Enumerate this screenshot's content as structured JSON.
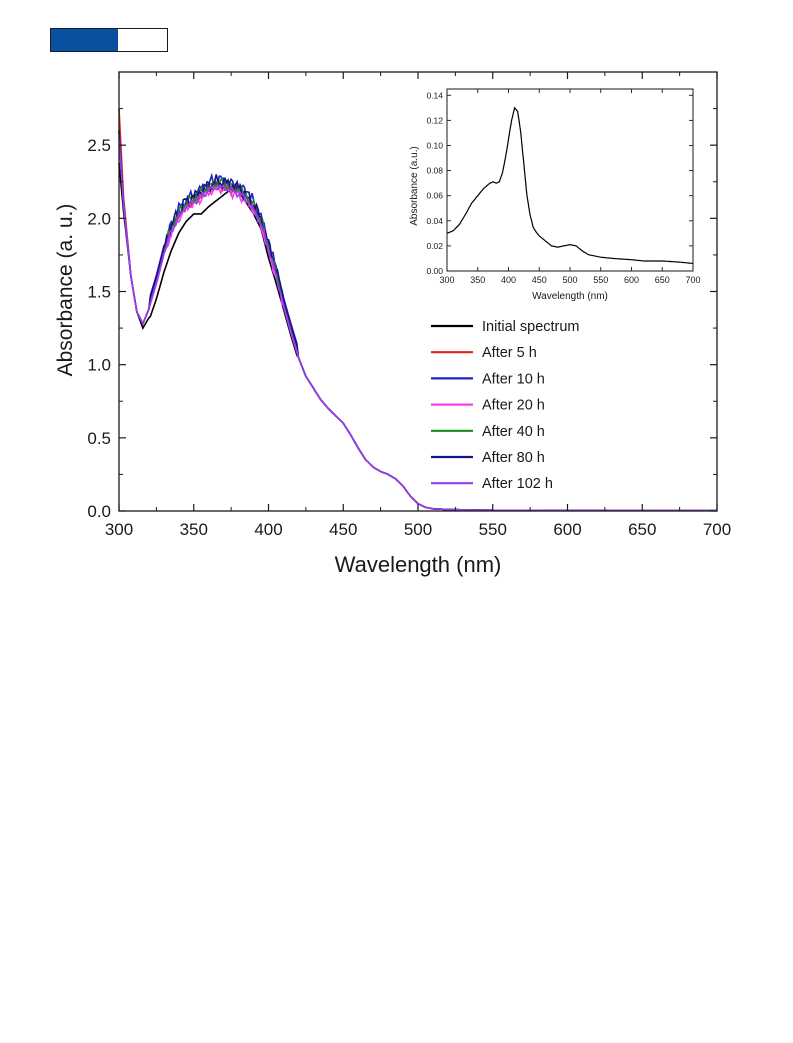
{
  "header": {
    "fill_fraction": 0.58,
    "fill_color": "#0a50a1"
  },
  "chart_data": [
    {
      "type": "line",
      "xlabel": "Wavelength (nm)",
      "ylabel": "Absorbance (a. u.)",
      "xlim": [
        300,
        700
      ],
      "ylim": [
        0,
        3.0
      ],
      "xticks": [
        "300",
        "350",
        "400",
        "450",
        "500",
        "550",
        "600",
        "650",
        "700"
      ],
      "yticks": [
        "0.0",
        "0.5",
        "1.0",
        "1.5",
        "2.0",
        "2.5"
      ],
      "legend_placement": "right",
      "series": [
        {
          "name": "Initial spectrum",
          "color": "#000000",
          "noise": 0.0,
          "dx": 0.0,
          "dy": -0.02,
          "x": [
            300,
            303,
            308,
            312,
            316,
            320,
            325,
            330,
            335,
            340,
            345,
            350,
            355,
            360,
            365,
            370,
            375,
            380,
            385,
            390,
            395,
            400,
            405,
            410,
            415,
            420,
            425,
            430,
            435,
            440,
            445,
            450,
            455,
            460,
            465,
            470,
            475,
            480,
            485,
            490,
            495,
            500,
            505,
            510,
            520,
            530,
            550,
            600,
            650,
            700
          ],
          "y": [
            2.38,
            2.05,
            1.6,
            1.36,
            1.25,
            1.32,
            1.47,
            1.65,
            1.8,
            1.92,
            2.0,
            2.05,
            2.05,
            2.1,
            2.14,
            2.18,
            2.22,
            2.2,
            2.13,
            2.05,
            1.95,
            1.75,
            1.58,
            1.4,
            1.22,
            1.05,
            0.92,
            0.84,
            0.76,
            0.7,
            0.65,
            0.6,
            0.52,
            0.43,
            0.35,
            0.3,
            0.27,
            0.25,
            0.22,
            0.17,
            0.1,
            0.05,
            0.025,
            0.015,
            0.01,
            0.008,
            0.005,
            0.003,
            0.002,
            0.002
          ]
        },
        {
          "name": "After 5 h",
          "color": "#e8211b",
          "noise": 0.04,
          "dx": 0.0,
          "dy": 0.02,
          "x": [
            300,
            303,
            308,
            312,
            316,
            320,
            325,
            330,
            335,
            340,
            345,
            350,
            355,
            360,
            365,
            370,
            375,
            380,
            385,
            390,
            395,
            400,
            405,
            410,
            415,
            420,
            425,
            430,
            435,
            440,
            445,
            450,
            455,
            460,
            465,
            470,
            475,
            480,
            485,
            490,
            495,
            500,
            505,
            510,
            520,
            530,
            550,
            600,
            650,
            700
          ],
          "y": [
            2.75,
            2.15,
            1.6,
            1.36,
            1.28,
            1.38,
            1.55,
            1.75,
            1.9,
            2.0,
            2.07,
            2.1,
            2.14,
            2.18,
            2.2,
            2.2,
            2.18,
            2.16,
            2.12,
            2.05,
            1.95,
            1.78,
            1.6,
            1.4,
            1.22,
            1.05,
            0.92,
            0.84,
            0.76,
            0.7,
            0.65,
            0.6,
            0.52,
            0.43,
            0.35,
            0.3,
            0.27,
            0.25,
            0.22,
            0.17,
            0.1,
            0.05,
            0.025,
            0.015,
            0.01,
            0.008,
            0.005,
            0.003,
            0.002,
            0.002
          ]
        },
        {
          "name": "After 10 h",
          "color": "#2020c8",
          "noise": 0.05,
          "dx": 0.0,
          "dy": 0.06,
          "x": [
            300,
            303,
            308,
            312,
            316,
            320,
            325,
            330,
            335,
            340,
            345,
            350,
            355,
            360,
            365,
            370,
            375,
            380,
            385,
            390,
            395,
            400,
            405,
            410,
            415,
            420,
            425,
            430,
            435,
            440,
            445,
            450,
            455,
            460,
            465,
            470,
            475,
            480,
            485,
            490,
            495,
            500,
            505,
            510,
            520,
            530,
            550,
            600,
            650,
            700
          ],
          "y": [
            2.6,
            2.1,
            1.6,
            1.36,
            1.28,
            1.38,
            1.55,
            1.75,
            1.9,
            2.0,
            2.07,
            2.1,
            2.14,
            2.18,
            2.2,
            2.2,
            2.18,
            2.16,
            2.12,
            2.05,
            1.95,
            1.78,
            1.6,
            1.4,
            1.22,
            1.05,
            0.92,
            0.84,
            0.76,
            0.7,
            0.65,
            0.6,
            0.52,
            0.43,
            0.35,
            0.3,
            0.27,
            0.25,
            0.22,
            0.17,
            0.1,
            0.05,
            0.025,
            0.015,
            0.01,
            0.008,
            0.005,
            0.003,
            0.002,
            0.002
          ]
        },
        {
          "name": "After 20 h",
          "color": "#f040f0",
          "noise": 0.04,
          "dx": 0.0,
          "dy": 0.0,
          "x": [
            300,
            303,
            308,
            312,
            316,
            320,
            325,
            330,
            335,
            340,
            345,
            350,
            355,
            360,
            365,
            370,
            375,
            380,
            385,
            390,
            395,
            400,
            405,
            410,
            415,
            420,
            425,
            430,
            435,
            440,
            445,
            450,
            455,
            460,
            465,
            470,
            475,
            480,
            485,
            490,
            495,
            500,
            505,
            510,
            520,
            530,
            550,
            600,
            650,
            700
          ],
          "y": [
            2.6,
            2.1,
            1.6,
            1.36,
            1.28,
            1.38,
            1.55,
            1.75,
            1.9,
            2.0,
            2.07,
            2.1,
            2.14,
            2.18,
            2.2,
            2.2,
            2.18,
            2.16,
            2.12,
            2.05,
            1.95,
            1.78,
            1.6,
            1.4,
            1.22,
            1.05,
            0.92,
            0.84,
            0.76,
            0.7,
            0.65,
            0.6,
            0.52,
            0.43,
            0.35,
            0.3,
            0.27,
            0.25,
            0.22,
            0.17,
            0.1,
            0.05,
            0.025,
            0.015,
            0.01,
            0.008,
            0.005,
            0.003,
            0.002,
            0.002
          ]
        },
        {
          "name": "After 40 h",
          "color": "#1a8a1a",
          "noise": 0.04,
          "dx": 0.0,
          "dy": 0.04,
          "x": [
            300,
            303,
            308,
            312,
            316,
            320,
            325,
            330,
            335,
            340,
            345,
            350,
            355,
            360,
            365,
            370,
            375,
            380,
            385,
            390,
            395,
            400,
            405,
            410,
            415,
            420,
            425,
            430,
            435,
            440,
            445,
            450,
            455,
            460,
            465,
            470,
            475,
            480,
            485,
            490,
            495,
            500,
            505,
            510,
            520,
            530,
            550,
            600,
            650,
            700
          ],
          "y": [
            2.6,
            2.1,
            1.6,
            1.36,
            1.28,
            1.38,
            1.55,
            1.75,
            1.9,
            2.0,
            2.07,
            2.1,
            2.14,
            2.18,
            2.2,
            2.2,
            2.18,
            2.16,
            2.12,
            2.05,
            1.95,
            1.78,
            1.6,
            1.4,
            1.22,
            1.05,
            0.92,
            0.84,
            0.76,
            0.7,
            0.65,
            0.6,
            0.52,
            0.43,
            0.35,
            0.3,
            0.27,
            0.25,
            0.22,
            0.17,
            0.1,
            0.05,
            0.025,
            0.015,
            0.01,
            0.008,
            0.005,
            0.003,
            0.002,
            0.002
          ]
        },
        {
          "name": "After 80 h",
          "color": "#141480",
          "noise": 0.05,
          "dx": 0.0,
          "dy": 0.05,
          "x": [
            300,
            303,
            308,
            312,
            316,
            320,
            325,
            330,
            335,
            340,
            345,
            350,
            355,
            360,
            365,
            370,
            375,
            380,
            385,
            390,
            395,
            400,
            405,
            410,
            415,
            420,
            425,
            430,
            435,
            440,
            445,
            450,
            455,
            460,
            465,
            470,
            475,
            480,
            485,
            490,
            495,
            500,
            505,
            510,
            520,
            530,
            550,
            600,
            650,
            700
          ],
          "y": [
            2.6,
            2.1,
            1.6,
            1.36,
            1.28,
            1.38,
            1.55,
            1.75,
            1.9,
            2.0,
            2.07,
            2.1,
            2.14,
            2.18,
            2.2,
            2.2,
            2.18,
            2.16,
            2.12,
            2.05,
            1.95,
            1.78,
            1.6,
            1.4,
            1.22,
            1.05,
            0.92,
            0.84,
            0.76,
            0.7,
            0.65,
            0.6,
            0.52,
            0.43,
            0.35,
            0.3,
            0.27,
            0.25,
            0.22,
            0.17,
            0.1,
            0.05,
            0.025,
            0.015,
            0.01,
            0.008,
            0.005,
            0.003,
            0.002,
            0.002
          ]
        },
        {
          "name": "After 102 h",
          "color": "#9a3cf0",
          "noise": 0.03,
          "dx": 0.0,
          "dy": 0.01,
          "x": [
            300,
            303,
            308,
            312,
            316,
            320,
            325,
            330,
            335,
            340,
            345,
            350,
            355,
            360,
            365,
            370,
            375,
            380,
            385,
            390,
            395,
            400,
            405,
            410,
            415,
            420,
            425,
            430,
            435,
            440,
            445,
            450,
            455,
            460,
            465,
            470,
            475,
            480,
            485,
            490,
            495,
            500,
            505,
            510,
            520,
            530,
            550,
            600,
            650,
            700
          ],
          "y": [
            2.55,
            2.1,
            1.6,
            1.36,
            1.28,
            1.38,
            1.55,
            1.75,
            1.9,
            2.0,
            2.07,
            2.1,
            2.14,
            2.18,
            2.2,
            2.2,
            2.18,
            2.16,
            2.12,
            2.05,
            1.95,
            1.78,
            1.6,
            1.4,
            1.22,
            1.05,
            0.92,
            0.84,
            0.76,
            0.7,
            0.65,
            0.6,
            0.52,
            0.43,
            0.35,
            0.3,
            0.27,
            0.25,
            0.22,
            0.17,
            0.1,
            0.05,
            0.025,
            0.015,
            0.01,
            0.008,
            0.005,
            0.003,
            0.002,
            0.002
          ]
        }
      ]
    },
    {
      "type": "line",
      "role": "inset",
      "xlabel": "Wavelength (nm)",
      "ylabel": "Absorbance (a.u.)",
      "xlim": [
        300,
        700
      ],
      "ylim": [
        0,
        0.145
      ],
      "xticks": [
        "300",
        "350",
        "400",
        "450",
        "500",
        "550",
        "600",
        "650",
        "700"
      ],
      "yticks": [
        "0.00",
        "0.02",
        "0.04",
        "0.06",
        "0.08",
        "0.10",
        "0.12",
        "0.14"
      ],
      "series": [
        {
          "color": "#000000",
          "x": [
            300,
            310,
            320,
            330,
            340,
            350,
            360,
            370,
            375,
            380,
            385,
            390,
            395,
            400,
            405,
            410,
            415,
            420,
            425,
            430,
            435,
            440,
            445,
            450,
            460,
            470,
            480,
            490,
            500,
            510,
            520,
            530,
            550,
            570,
            600,
            620,
            650,
            680,
            700
          ],
          "y": [
            0.03,
            0.032,
            0.037,
            0.045,
            0.054,
            0.06,
            0.066,
            0.07,
            0.071,
            0.07,
            0.071,
            0.078,
            0.09,
            0.105,
            0.12,
            0.13,
            0.127,
            0.11,
            0.085,
            0.06,
            0.045,
            0.035,
            0.031,
            0.028,
            0.024,
            0.02,
            0.019,
            0.02,
            0.021,
            0.02,
            0.016,
            0.013,
            0.011,
            0.01,
            0.009,
            0.008,
            0.008,
            0.007,
            0.006
          ]
        }
      ]
    }
  ]
}
